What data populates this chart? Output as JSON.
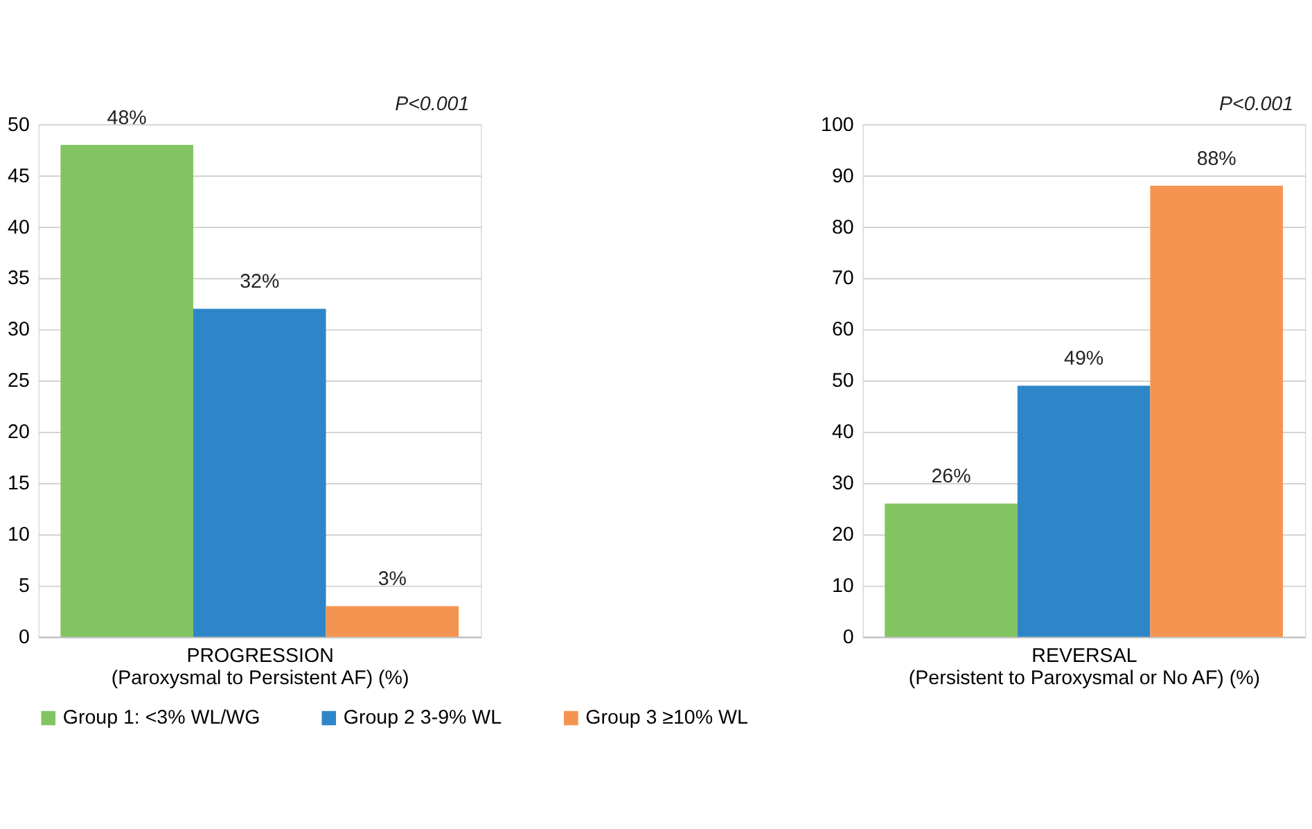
{
  "chart_data": [
    {
      "type": "bar",
      "categories": [
        null
      ],
      "xlabel": "PROGRESSION\n(Paroxysmal to Persistent AF) (%)",
      "ylim": [
        0,
        50
      ],
      "yticks": [
        0,
        5,
        10,
        15,
        20,
        25,
        30,
        35,
        40,
        45,
        50
      ],
      "grid": "y",
      "legend": "bottom",
      "annotations": [
        "P<0.001"
      ],
      "series": [
        {
          "name": "Group 1: <3% WL/WG",
          "color": "#82c461",
          "values": [
            48
          ],
          "value_labels": [
            "48%"
          ]
        },
        {
          "name": "Group 2 3-9% WL",
          "color": "#2e86c9",
          "values": [
            32
          ],
          "value_labels": [
            "32%"
          ]
        },
        {
          "name": "Group 3 ≥10% WL",
          "color": "#f59450",
          "values": [
            3
          ],
          "value_labels": [
            "3%"
          ]
        }
      ]
    },
    {
      "type": "bar",
      "categories": [
        null
      ],
      "xlabel": "REVERSAL\n(Persistent to Paroxysmal or No AF) (%)",
      "ylim": [
        0,
        100
      ],
      "yticks": [
        0,
        10,
        20,
        30,
        40,
        50,
        60,
        70,
        80,
        90,
        100
      ],
      "grid": "y",
      "annotations": [
        "P<0.001"
      ],
      "series": [
        {
          "color": "#82c461",
          "values": [
            26
          ],
          "value_labels": [
            "26%"
          ]
        },
        {
          "color": "#2e86c9",
          "values": [
            49
          ],
          "value_labels": [
            "49%"
          ]
        },
        {
          "color": "#f59450",
          "values": [
            88
          ],
          "value_labels": [
            "88%"
          ]
        }
      ]
    }
  ]
}
